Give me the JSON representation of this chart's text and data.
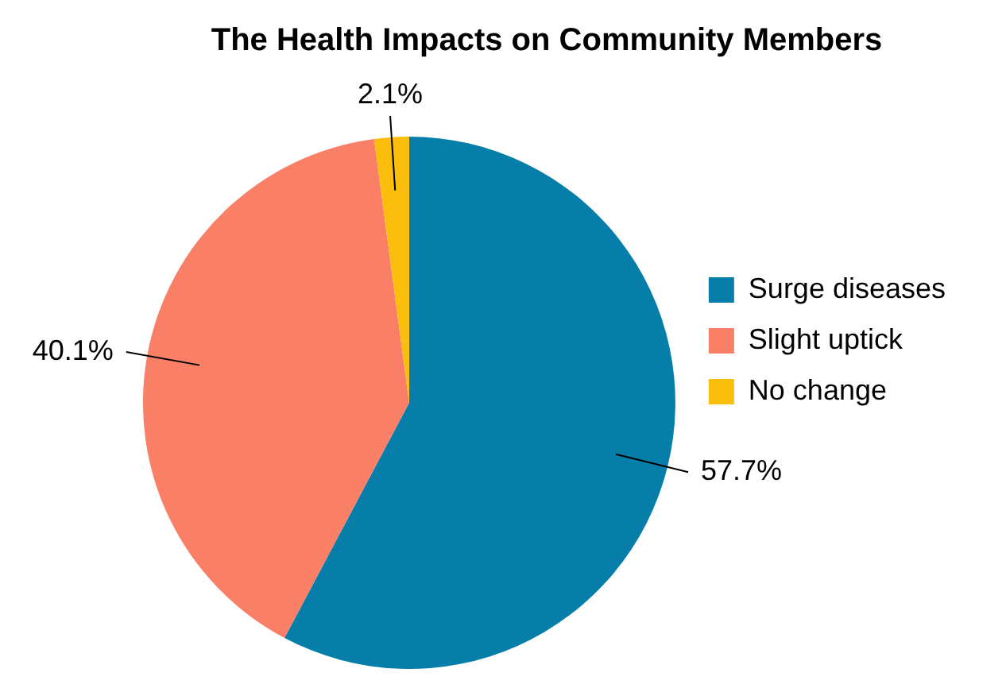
{
  "chart_data": {
    "type": "pie",
    "title": "The Health Impacts on Community Members",
    "categories": [
      "Surge diseases",
      "Slight uptick",
      "No change"
    ],
    "values": [
      57.7,
      40.1,
      2.1
    ],
    "colors": [
      "#067ea9",
      "#fa7f67",
      "#fcbe0c"
    ],
    "value_labels": [
      "57.7%",
      "40.1%",
      "2.1%"
    ],
    "legend": "right"
  }
}
